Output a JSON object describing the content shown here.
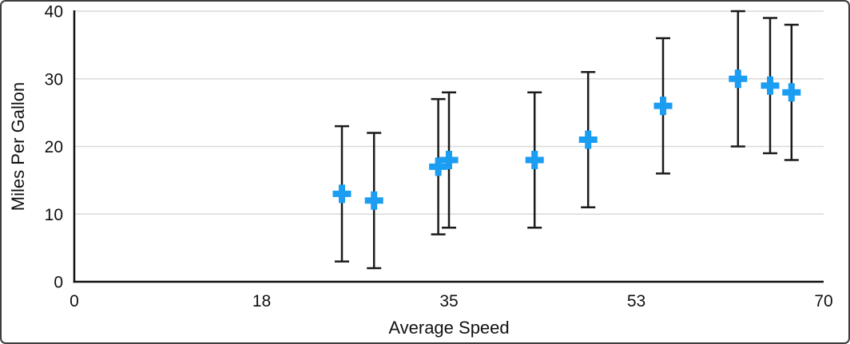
{
  "window": {
    "background_color": "#FFFFFF",
    "frame_border_color": "#3D3D3D"
  },
  "chart_data": {
    "type": "scatter",
    "title": "",
    "xlabel": "Average Speed",
    "ylabel": "Miles Per Gallon",
    "xlim": [
      0,
      70
    ],
    "ylim": [
      0,
      40
    ],
    "grid": "horizontal",
    "legend_position": "none",
    "x_ticks": [
      {
        "value": 0,
        "label": "0"
      },
      {
        "value": 17.5,
        "label": "18"
      },
      {
        "value": 35,
        "label": "35"
      },
      {
        "value": 52.5,
        "label": "53"
      },
      {
        "value": 70,
        "label": "70"
      }
    ],
    "y_ticks": [
      {
        "value": 0,
        "label": "0"
      },
      {
        "value": 10,
        "label": "10"
      },
      {
        "value": 20,
        "label": "20"
      },
      {
        "value": 30,
        "label": "30"
      },
      {
        "value": 40,
        "label": "40"
      }
    ],
    "series": [
      {
        "marker": "plus",
        "error_bars": {
          "direction": "y",
          "plus": 10,
          "minus": 10
        },
        "points": [
          {
            "x": 25,
            "y": 13
          },
          {
            "x": 28,
            "y": 12
          },
          {
            "x": 34,
            "y": 17
          },
          {
            "x": 35,
            "y": 18
          },
          {
            "x": 43,
            "y": 18
          },
          {
            "x": 48,
            "y": 21
          },
          {
            "x": 55,
            "y": 26
          },
          {
            "x": 62,
            "y": 30
          },
          {
            "x": 65,
            "y": 29
          },
          {
            "x": 67,
            "y": 28
          }
        ]
      }
    ],
    "colors": {
      "marker": "#1B9DF2",
      "error_bar": "#1A1A1A",
      "axis_line": "#111111",
      "gridline": "#D9D9D9",
      "tick_label": "#111111",
      "axis_title": "#111111",
      "background": "#FFFFFF"
    }
  }
}
